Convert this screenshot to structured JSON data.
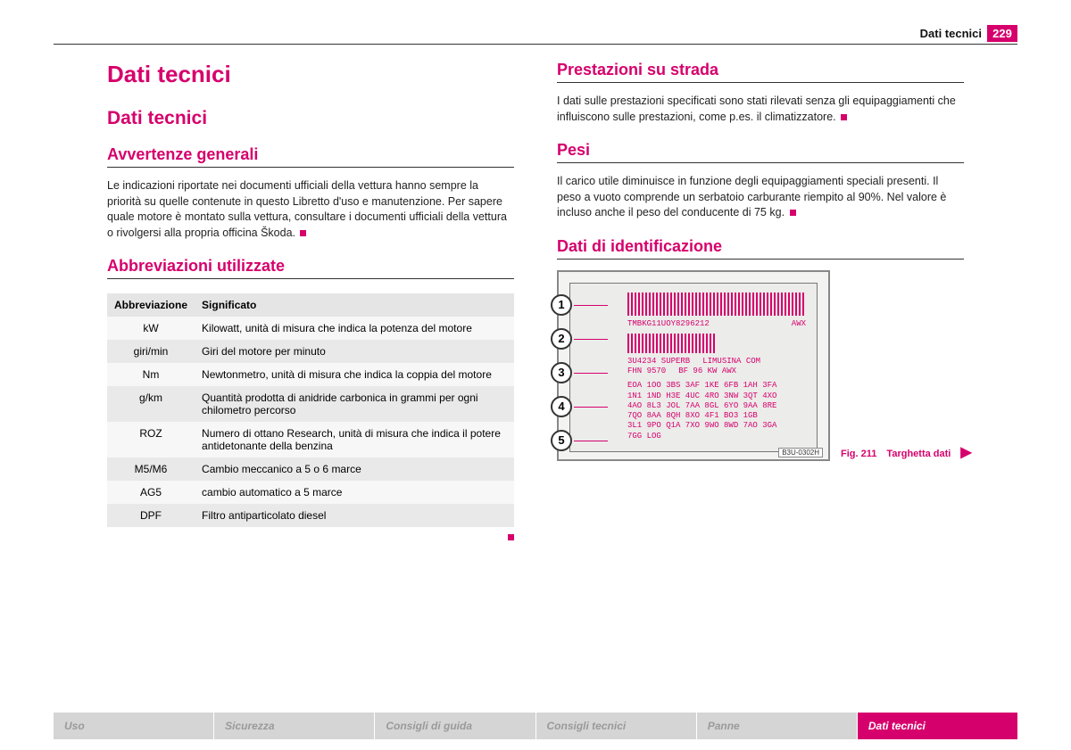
{
  "header": {
    "label": "Dati tecnici",
    "page": "229"
  },
  "left": {
    "h1": "Dati tecnici",
    "h2": "Dati tecnici",
    "sec1_title": "Avvertenze generali",
    "sec1_body": "Le indicazioni riportate nei documenti ufficiali della vettura hanno sempre la priorità su quelle contenute in questo Libretto d'uso e manutenzione. Per sapere quale motore è montato sulla vettura, consultare i documenti ufficiali della vettura o rivolgersi alla propria officina Škoda.",
    "sec2_title": "Abbreviazioni utilizzate",
    "table": {
      "head1": "Abbreviazione",
      "head2": "Significato",
      "rows": [
        {
          "a": "kW",
          "b": "Kilowatt, unità di misura che indica la potenza del motore"
        },
        {
          "a": "giri/min",
          "b": "Giri del motore per minuto"
        },
        {
          "a": "Nm",
          "b": "Newtonmetro, unità di misura che indica la coppia del motore"
        },
        {
          "a": "g/km",
          "b": "Quantità prodotta di anidride carbonica in grammi per ogni chilometro percorso"
        },
        {
          "a": "ROZ",
          "b": "Numero di ottano Research, unità di misura che indica il potere antidetonante della benzina"
        },
        {
          "a": "M5/M6",
          "b": "Cambio meccanico a 5 o 6 marce"
        },
        {
          "a": "AG5",
          "b": "cambio automatico a 5 marce"
        },
        {
          "a": "DPF",
          "b": "Filtro antiparticolato diesel"
        }
      ]
    }
  },
  "right": {
    "sec1_title": "Prestazioni su strada",
    "sec1_body": "I dati sulle prestazioni specificati sono stati rilevati senza gli equipaggiamenti che influiscono sulle prestazioni, come p.es. il climatizzatore.",
    "sec2_title": "Pesi",
    "sec2_body": "Il carico utile diminuisce in funzione degli equipaggiamenti speciali presenti. Il peso a vuoto comprende un serbatoio carburante riempito al 90%. Nel valore è incluso anche il peso del conducente di 75 kg.",
    "sec3_title": "Dati di identificazione",
    "plate": {
      "callouts": [
        "1",
        "2",
        "3",
        "4",
        "5"
      ],
      "vin": "TMBKG11UOY8296212",
      "vin_right": "AWX",
      "line2_left": "3U4234 SUPERB",
      "line2_right": "LIMUSINA  COM",
      "line3_left": "FHN 9570",
      "line3_right": "BF  96 KW AWX",
      "grid": [
        "EOA 1OO 3BS 3AF 1KE 6FB 1AH 3FA",
        "1N1 1ND H3E 4UC 4RO 3NW 3QT 4XO",
        "4AO 8L3 JOL 7AA 8GL 6YO 9AA 8RE",
        "7QO 8AA 8QH 8XO 4F1 BO3 1GB",
        "3L1 9PO Q1A 7XO 9WO 8WD 7AO 3GA"
      ],
      "last": "7GG LOG",
      "code": "B3U-0302H"
    },
    "fig_num": "Fig. 211",
    "fig_txt": "Targhetta dati"
  },
  "footer": {
    "tabs": [
      "Uso",
      "Sicurezza",
      "Consigli di guida",
      "Consigli tecnici",
      "Panne",
      "Dati tecnici"
    ],
    "active_index": 5
  },
  "colors": {
    "accent": "#d6006c",
    "grey": "#d5d5d5"
  }
}
